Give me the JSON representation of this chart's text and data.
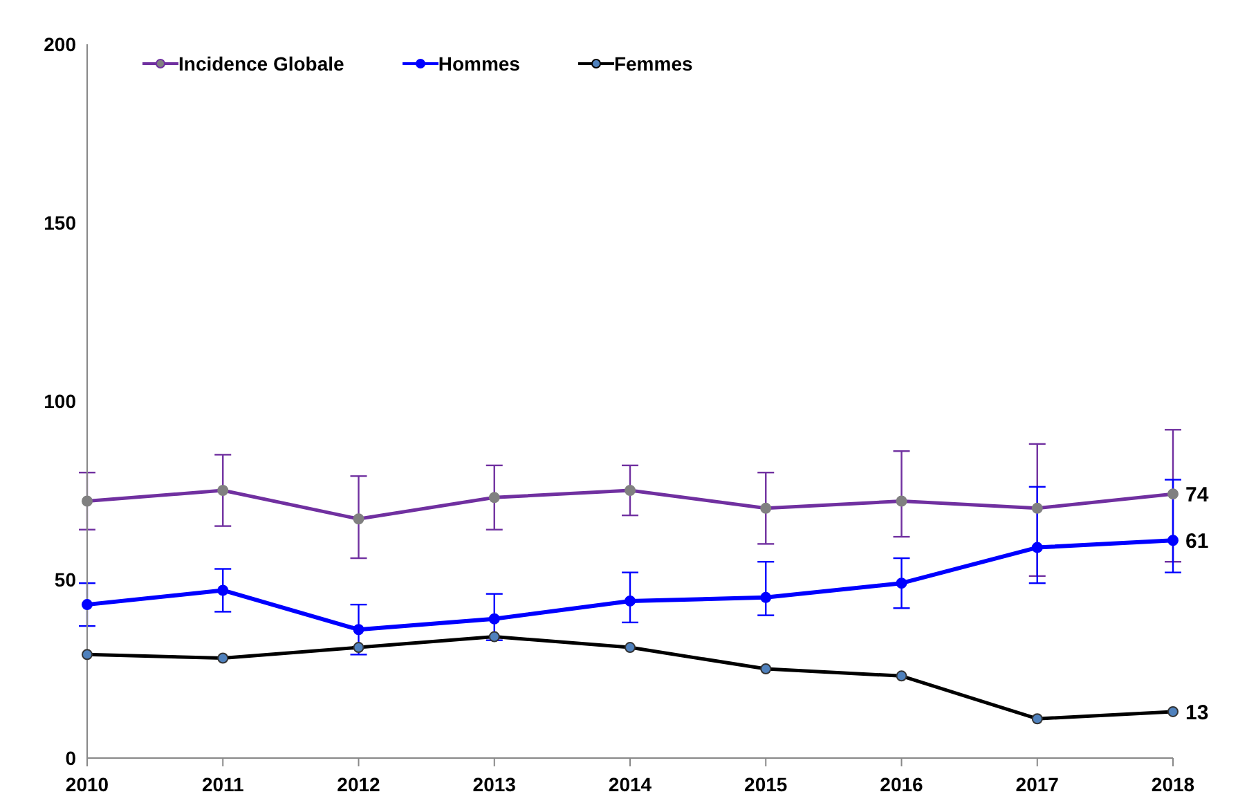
{
  "chart_data": {
    "type": "line",
    "categories": [
      "2010",
      "2011",
      "2012",
      "2013",
      "2014",
      "2015",
      "2016",
      "2017",
      "2018"
    ],
    "series": [
      {
        "name": "Incidence Globale",
        "color": "#7030a0",
        "values": [
          72,
          75,
          67,
          73,
          75,
          70,
          72,
          70,
          74
        ],
        "errors": [
          [
            64,
            80
          ],
          [
            65,
            85
          ],
          [
            56,
            79
          ],
          [
            64,
            82
          ],
          [
            68,
            82
          ],
          [
            60,
            80
          ],
          [
            62,
            86
          ],
          [
            51,
            88
          ],
          [
            55,
            92
          ]
        ],
        "value_labels": [
          null,
          null,
          null,
          null,
          null,
          null,
          null,
          null,
          "74"
        ]
      },
      {
        "name": "Hommes",
        "color": "#0000ff",
        "values": [
          43,
          47,
          36,
          39,
          44,
          45,
          49,
          59,
          61
        ],
        "errors": [
          [
            37,
            49
          ],
          [
            41,
            53
          ],
          [
            29,
            43
          ],
          [
            33,
            46
          ],
          [
            38,
            52
          ],
          [
            40,
            55
          ],
          [
            42,
            56
          ],
          [
            49,
            76
          ],
          [
            52,
            78
          ]
        ],
        "value_labels": [
          null,
          null,
          null,
          null,
          null,
          null,
          null,
          null,
          "61"
        ]
      },
      {
        "name": "Femmes",
        "color": "#000000",
        "values": [
          29,
          28,
          31,
          34,
          31,
          25,
          23,
          11,
          13
        ],
        "value_labels": [
          null,
          null,
          null,
          null,
          null,
          null,
          null,
          null,
          "13"
        ]
      }
    ],
    "ylim": [
      0,
      200
    ],
    "yticks": [
      0,
      50,
      100,
      150,
      200
    ],
    "grid": false,
    "legend": "top left",
    "marker": "circle",
    "line_style": "solid"
  }
}
